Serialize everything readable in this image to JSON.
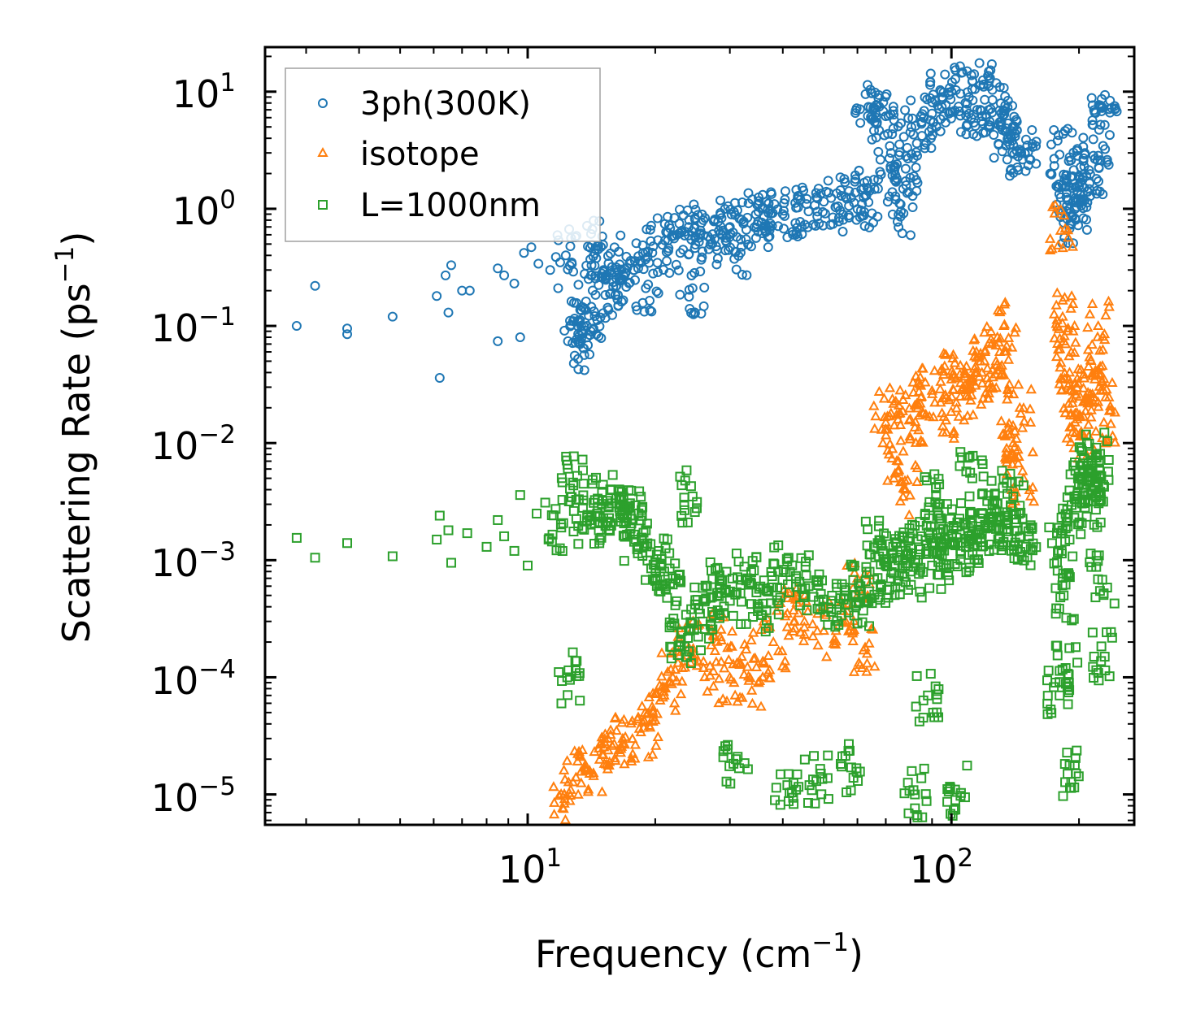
{
  "chart_data": {
    "type": "scatter",
    "xscale": "log",
    "yscale": "log",
    "xlim": [
      2.4,
      270
    ],
    "ylim": [
      5.5e-06,
      24
    ],
    "grid": false,
    "legend_position": "top-left",
    "xlabel": "Frequency (cm",
    "xlabel_sup": "−1",
    "xlabel_end": ")",
    "ylabel": "Scattering Rate (ps",
    "ylabel_sup": "−1",
    "ylabel_end": ")",
    "x_ticks": [
      {
        "value": 10,
        "base": "10",
        "exp": "1"
      },
      {
        "value": 100,
        "base": "10",
        "exp": "2"
      }
    ],
    "y_ticks": [
      {
        "value": 10,
        "base": "10",
        "exp": "1"
      },
      {
        "value": 1,
        "base": "10",
        "exp": "0"
      },
      {
        "value": 0.1,
        "base": "10",
        "exp": "−1"
      },
      {
        "value": 0.01,
        "base": "10",
        "exp": "−2"
      },
      {
        "value": 0.001,
        "base": "10",
        "exp": "−3"
      },
      {
        "value": 0.0001,
        "base": "10",
        "exp": "−4"
      },
      {
        "value": 1e-05,
        "base": "10",
        "exp": "−5"
      }
    ],
    "series": [
      {
        "name": "3ph(300K)",
        "marker": "circle",
        "color": "#1f77b4",
        "points": [
          [
            2.85,
            0.1
          ],
          [
            3.15,
            0.22
          ],
          [
            3.75,
            0.095
          ],
          [
            3.75,
            0.085
          ],
          [
            4.8,
            0.12
          ],
          [
            6.1,
            0.18
          ],
          [
            6.2,
            0.036
          ],
          [
            6.4,
            0.27
          ],
          [
            6.6,
            0.33
          ],
          [
            6.5,
            0.13
          ],
          [
            7.0,
            0.2
          ],
          [
            7.3,
            0.2
          ],
          [
            8.5,
            0.074
          ],
          [
            8.5,
            0.31
          ],
          [
            8.8,
            0.27
          ],
          [
            9.3,
            0.23
          ],
          [
            9.6,
            0.08
          ],
          [
            9.8,
            0.42
          ],
          [
            10.2,
            0.47
          ],
          [
            10.6,
            0.34
          ],
          [
            11.3,
            0.3
          ],
          [
            11.8,
            0.21
          ],
          [
            12.3,
            0.4
          ],
          [
            12.8,
            0.11
          ],
          [
            13.3,
            0.07
          ],
          [
            13.8,
            0.1
          ],
          [
            14.1,
            0.27
          ],
          [
            14.3,
            0.095
          ],
          [
            14.6,
            0.48
          ],
          [
            15.1,
            0.3
          ],
          [
            15.7,
            0.19
          ],
          [
            16.2,
            0.22
          ],
          [
            16.7,
            0.25
          ],
          [
            17.5,
            0.36
          ],
          [
            19.0,
            0.21
          ],
          [
            20.3,
            0.54
          ],
          [
            21.5,
            0.46
          ],
          [
            22.5,
            0.6
          ],
          [
            24.0,
            0.7
          ],
          [
            24.5,
            0.21
          ],
          [
            25.5,
            0.6
          ],
          [
            27.0,
            0.55
          ],
          [
            28.5,
            0.71
          ],
          [
            30.0,
            0.7
          ],
          [
            31.0,
            0.43
          ],
          [
            33.0,
            0.84
          ],
          [
            35.0,
            0.78
          ],
          [
            37.0,
            0.92
          ],
          [
            40.0,
            0.9
          ],
          [
            43.0,
            1.02
          ],
          [
            46.0,
            0.95
          ],
          [
            50.0,
            1.15
          ],
          [
            54.0,
            1.05
          ],
          [
            58.0,
            1.25
          ],
          [
            61.5,
            1.1
          ],
          [
            63.0,
            1.3
          ],
          [
            63.5,
            6.2
          ],
          [
            66.0,
            7.2
          ],
          [
            69.0,
            6.8
          ],
          [
            72.0,
            3.0
          ],
          [
            74.0,
            1.7
          ],
          [
            76.0,
            0.95
          ],
          [
            78.0,
            2.2
          ],
          [
            80.0,
            4.5
          ],
          [
            85.0,
            5.5
          ],
          [
            90.0,
            6.5
          ],
          [
            95.0,
            9.0
          ],
          [
            100.0,
            10.0
          ],
          [
            105.0,
            9.6
          ],
          [
            110.0,
            6.5
          ],
          [
            115.0,
            7.0
          ],
          [
            119.0,
            11.5
          ],
          [
            125.0,
            8.5
          ],
          [
            130.0,
            5.5
          ],
          [
            135.0,
            4.5
          ],
          [
            140.0,
            3.5
          ],
          [
            145.0,
            3.2
          ],
          [
            150.0,
            3.9
          ],
          [
            180.0,
            2.9
          ],
          [
            183.0,
            1.6
          ],
          [
            188.0,
            1.2
          ],
          [
            193.0,
            0.85
          ],
          [
            196.0,
            1.0
          ],
          [
            200.0,
            1.9
          ],
          [
            205.0,
            2.7
          ],
          [
            210.0,
            1.4
          ],
          [
            220.0,
            1.8
          ],
          [
            226.0,
            6.8
          ],
          [
            230.0,
            5.2
          ]
        ]
      },
      {
        "name": "isotope",
        "marker": "triangle",
        "color": "#ff7f0e",
        "points": [
          [
            12.2,
            1e-05
          ],
          [
            13.0,
            1.4e-05
          ],
          [
            14.0,
            1.6e-05
          ],
          [
            15.0,
            2.2e-05
          ],
          [
            16.0,
            2.7e-05
          ],
          [
            17.0,
            3.1e-05
          ],
          [
            18.5,
            3.4e-05
          ],
          [
            20.0,
            4.3e-05
          ],
          [
            21.0,
            7e-05
          ],
          [
            22.0,
            0.0001
          ],
          [
            24.0,
            0.00018
          ],
          [
            26.0,
            0.00012
          ],
          [
            28.5,
            0.00022
          ],
          [
            30.0,
            0.0001
          ],
          [
            32.0,
            0.00015
          ],
          [
            35.0,
            9e-05
          ],
          [
            38.0,
            0.0002
          ],
          [
            41.0,
            0.00035
          ],
          [
            45.0,
            0.0003
          ],
          [
            50.0,
            0.00025
          ],
          [
            55.0,
            0.0003
          ],
          [
            60.0,
            0.0007
          ],
          [
            62.0,
            0.00017
          ],
          [
            70.0,
            0.015
          ],
          [
            72.0,
            0.018
          ],
          [
            75.0,
            0.007
          ],
          [
            78.0,
            0.004
          ],
          [
            80.0,
            0.016
          ],
          [
            85.0,
            0.025
          ],
          [
            90.0,
            0.028
          ],
          [
            95.0,
            0.018
          ],
          [
            100.0,
            0.035
          ],
          [
            105.0,
            0.025
          ],
          [
            110.0,
            0.03
          ],
          [
            115.0,
            0.04
          ],
          [
            120.0,
            0.06
          ],
          [
            125.0,
            0.03
          ],
          [
            130.0,
            0.06
          ],
          [
            133.0,
            0.1
          ],
          [
            135.0,
            0.009
          ],
          [
            140.0,
            0.01
          ],
          [
            145.0,
            0.02
          ],
          [
            148.0,
            0.005
          ],
          [
            181.0,
            0.65
          ],
          [
            183.0,
            0.12
          ],
          [
            186.0,
            0.07
          ],
          [
            190.0,
            0.04
          ],
          [
            193.0,
            0.022
          ],
          [
            198.0,
            0.016
          ],
          [
            203.0,
            0.012
          ],
          [
            210.0,
            0.027
          ],
          [
            218.0,
            0.035
          ],
          [
            222.0,
            0.1
          ],
          [
            225.0,
            0.028
          ],
          [
            229.0,
            0.015
          ]
        ]
      },
      {
        "name": "L=1000nm",
        "marker": "square",
        "color": "#2ca02c",
        "points": [
          [
            2.85,
            0.00155
          ],
          [
            3.15,
            0.00105
          ],
          [
            3.75,
            0.0014
          ],
          [
            4.8,
            0.00108
          ],
          [
            6.1,
            0.0015
          ],
          [
            6.2,
            0.0024
          ],
          [
            6.5,
            0.0018
          ],
          [
            6.6,
            0.00095
          ],
          [
            7.2,
            0.0017
          ],
          [
            8.0,
            0.0013
          ],
          [
            8.5,
            0.0022
          ],
          [
            8.8,
            0.0016
          ],
          [
            9.3,
            0.0012
          ],
          [
            9.6,
            0.0036
          ],
          [
            10.0,
            0.0009
          ],
          [
            10.5,
            0.0025
          ],
          [
            11.0,
            0.0031
          ],
          [
            12.0,
            0.0019
          ],
          [
            12.4,
            0.0001
          ],
          [
            12.8,
            0.0046
          ],
          [
            13.5,
            0.0028
          ],
          [
            14.0,
            0.0022
          ],
          [
            15.0,
            0.0032
          ],
          [
            15.5,
            0.0029
          ],
          [
            16.5,
            0.0026
          ],
          [
            17.5,
            0.0024
          ],
          [
            18.0,
            0.0015
          ],
          [
            19.0,
            0.0018
          ],
          [
            20.0,
            0.00096
          ],
          [
            21.0,
            0.0008
          ],
          [
            22.0,
            0.00062
          ],
          [
            23.0,
            0.0002
          ],
          [
            24.0,
            0.00025
          ],
          [
            24.5,
            0.0035
          ],
          [
            25.5,
            0.00035
          ],
          [
            26.5,
            0.0006
          ],
          [
            28.0,
            0.0005
          ],
          [
            30.0,
            0.00045
          ],
          [
            31.0,
            2e-05
          ],
          [
            33.0,
            0.0007
          ],
          [
            35.0,
            0.0004
          ],
          [
            37.0,
            0.00055
          ],
          [
            39.0,
            0.0008
          ],
          [
            41.0,
            1.2e-05
          ],
          [
            43.0,
            0.0007
          ],
          [
            46.0,
            0.0006
          ],
          [
            48.0,
            1.3e-05
          ],
          [
            52.0,
            0.00045
          ],
          [
            56.0,
            0.0005
          ],
          [
            58.0,
            1.7e-05
          ],
          [
            61.0,
            0.0006
          ],
          [
            63.0,
            0.00045
          ],
          [
            67.0,
            0.0014
          ],
          [
            70.0,
            0.0009
          ],
          [
            72.0,
            0.0007
          ],
          [
            75.0,
            0.001
          ],
          [
            78.0,
            0.0012
          ],
          [
            80.0,
            0.0008
          ],
          [
            82.0,
            1e-05
          ],
          [
            85.0,
            0.0016
          ],
          [
            88.0,
            7e-05
          ],
          [
            90.0,
            0.0009
          ],
          [
            92.0,
            0.0035
          ],
          [
            95.0,
            0.0011
          ],
          [
            98.0,
            0.0018
          ],
          [
            100.0,
            0.0014
          ],
          [
            102.0,
            1.1e-05
          ],
          [
            105.0,
            0.0012
          ],
          [
            110.0,
            0.0016
          ],
          [
            112.0,
            0.005
          ],
          [
            115.0,
            0.0015
          ],
          [
            120.0,
            0.002
          ],
          [
            125.0,
            0.003
          ],
          [
            130.0,
            0.0018
          ],
          [
            135.0,
            0.0022
          ],
          [
            140.0,
            0.0035
          ],
          [
            145.0,
            0.0016
          ],
          [
            150.0,
            0.0013
          ],
          [
            180.0,
            7e-05
          ],
          [
            182.0,
            0.0012
          ],
          [
            184.0,
            0.0005
          ],
          [
            186.0,
            0.00012
          ],
          [
            188.0,
            1.5e-05
          ],
          [
            190.0,
            0.0015
          ],
          [
            195.0,
            0.0035
          ],
          [
            200.0,
            0.0045
          ],
          [
            205.0,
            0.0055
          ],
          [
            210.0,
            0.006
          ],
          [
            215.0,
            0.0052
          ],
          [
            220.0,
            0.0075
          ],
          [
            224.0,
            0.0032
          ],
          [
            227.0,
            0.00068
          ],
          [
            230.0,
            0.00015
          ]
        ]
      }
    ]
  }
}
